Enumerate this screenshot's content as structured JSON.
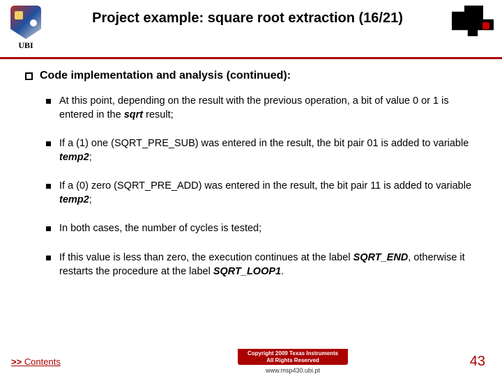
{
  "header": {
    "ubi_label": "UBI",
    "title": "Project example: square root extraction (16/21)"
  },
  "content": {
    "heading": "Code implementation and analysis (continued):",
    "bullets": [
      {
        "pre": "At this point, depending on the result with the previous operation, a bit of value 0 or 1 is entered in the ",
        "em1": "sqrt",
        "post1": " result;"
      },
      {
        "pre": "If a (1) one (SQRT_PRE_SUB) was entered in the result, the bit pair 01 is added to variable ",
        "em1": "temp2",
        "post1": ";"
      },
      {
        "pre": "If a (0) zero (SQRT_PRE_ADD) was entered in the result, the bit pair 11 is added to variable ",
        "em1": "temp2",
        "post1": ";"
      },
      {
        "pre": "In both cases, the number of cycles is tested;"
      },
      {
        "pre": "If this value is less than zero, the execution continues at the label ",
        "em1": "SQRT_END",
        "post1": ", otherwise it restarts the procedure at the label ",
        "em2": "SQRT_LOOP1",
        "post2": "."
      }
    ]
  },
  "footer": {
    "contents_prefix": ">> ",
    "contents_label": "Contents",
    "copyright_l1": "Copyright  2009 Texas Instruments",
    "copyright_l2": "All Rights Reserved",
    "url": "www.msp430.ubi.pt",
    "page_number": "43"
  },
  "colors": {
    "accent": "#aa0000"
  }
}
